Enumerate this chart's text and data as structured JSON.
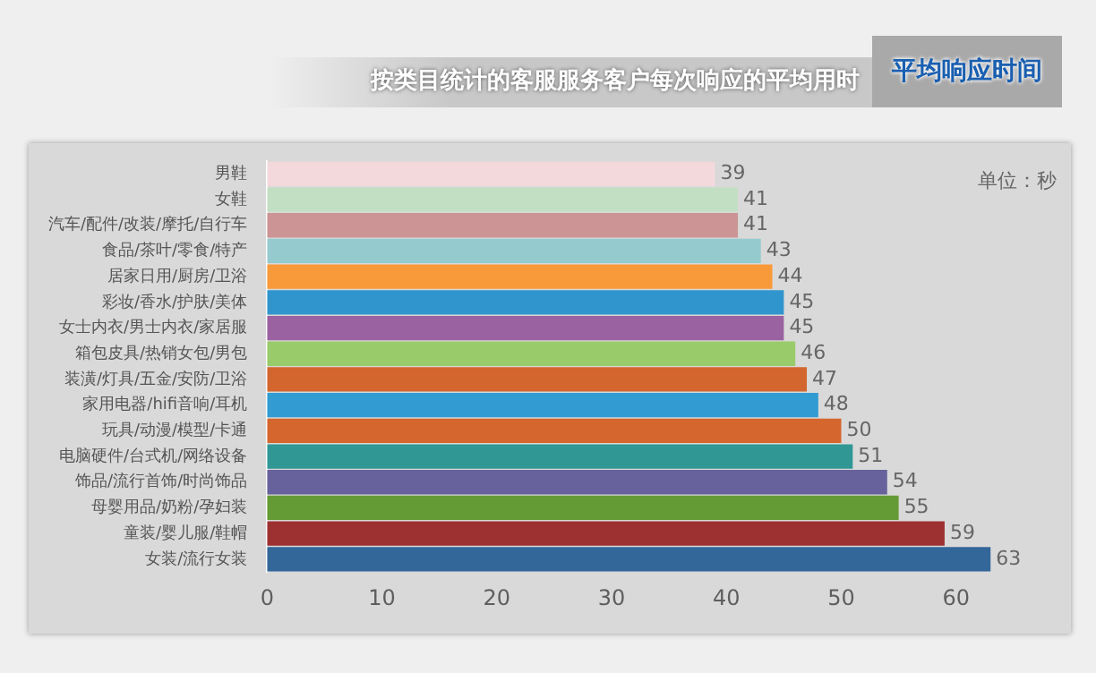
{
  "chart_data": {
    "type": "bar",
    "orientation": "horizontal",
    "title": "平均响应时间",
    "subtitle": "按类目统计的客服服务客户每次响应的平均用时",
    "annotations": [
      "单位：秒"
    ],
    "categories": [
      "男鞋",
      "女鞋",
      "汽车/配件/改装/摩托/自行车",
      "食品/茶叶/零食/特产",
      "居家日用/厨房/卫浴",
      "彩妆/香水/护肤/美体",
      "女士内衣/男士内衣/家居服",
      "箱包皮具/热销女包/男包",
      "装潢/灯具/五金/安防/卫浴",
      "家用电器/hifi音响/耳机",
      "玩具/动漫/模型/卡通",
      "电脑硬件/台式机/网络设备",
      "饰品/流行首饰/时尚饰品",
      "母婴用品/奶粉/孕妇装",
      "童装/婴儿服/鞋帽",
      "女装/流行女装"
    ],
    "values": [
      39,
      41,
      41,
      43,
      44,
      45,
      45,
      46,
      47,
      48,
      50,
      51,
      54,
      55,
      59,
      63
    ],
    "colors": [
      "#f4d9dc",
      "#c3dfc3",
      "#cc9494",
      "#95cbcf",
      "#f99a3a",
      "#3195cd",
      "#9a62a0",
      "#99cb6a",
      "#d2662e",
      "#329bd2",
      "#d5662e",
      "#319795",
      "#67629b",
      "#659b35",
      "#9d3030",
      "#336699"
    ],
    "xlim": [
      0,
      70
    ],
    "xticks": [
      0,
      10,
      20,
      30,
      40,
      50,
      60
    ],
    "data_labels": true,
    "grid": false,
    "legend": false
  }
}
